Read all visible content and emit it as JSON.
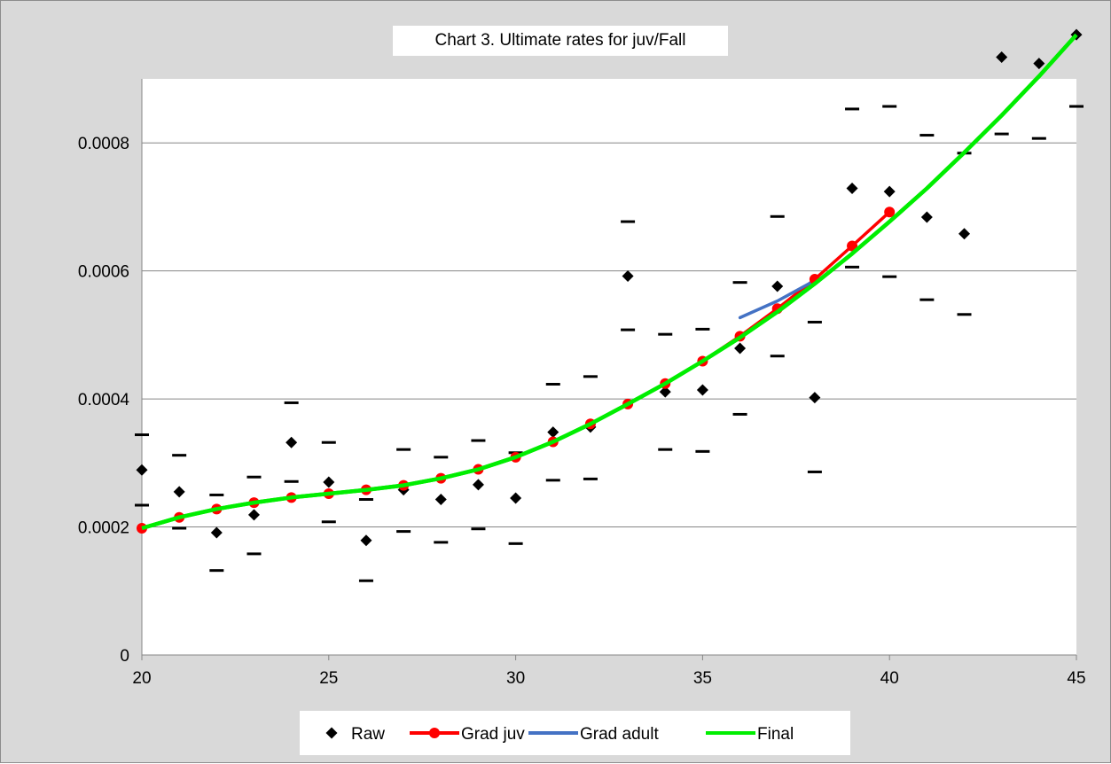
{
  "chart_data": {
    "type": "scatter",
    "title": "Chart 3. Ultimate rates for juv/Fall",
    "xlabel": "",
    "ylabel": "",
    "xlim": [
      20,
      45
    ],
    "ylim": [
      0,
      0.0009
    ],
    "x_ticks": [
      20,
      25,
      30,
      35,
      40,
      45
    ],
    "x_tick_labels": [
      "20",
      "25",
      "30",
      "35",
      "40",
      "45"
    ],
    "y_ticks": [
      0,
      0.0002,
      0.0004,
      0.0006,
      0.0008
    ],
    "y_tick_labels": [
      "0",
      "0.0002",
      "0.0004",
      "0.0006",
      "0.0008"
    ],
    "grid": "horizontal",
    "legend_position": "bottom",
    "series": [
      {
        "name": "Raw",
        "kind": "markers",
        "marker": "diamond",
        "color": "#000000",
        "x": [
          20,
          21,
          22,
          23,
          24,
          25,
          26,
          27,
          28,
          29,
          30,
          31,
          32,
          33,
          34,
          35,
          36,
          37,
          38,
          39,
          40,
          41,
          42,
          43,
          44,
          45
        ],
        "y": [
          0.000289,
          0.000255,
          0.000191,
          0.000219,
          0.000332,
          0.00027,
          0.000179,
          0.000258,
          0.000243,
          0.000266,
          0.000245,
          0.000348,
          0.000356,
          0.000592,
          0.000411,
          0.000414,
          0.000479,
          0.000576,
          0.000402,
          0.000729,
          0.000724,
          0.000684,
          0.000658,
          0.000934,
          0.000924,
          0.000969
        ]
      },
      {
        "name": "Grad juv",
        "kind": "line-markers",
        "marker": "circle",
        "color": "#ff0000",
        "x": [
          20,
          21,
          22,
          23,
          24,
          25,
          26,
          27,
          28,
          29,
          30,
          31,
          32,
          33,
          34,
          35,
          36,
          37,
          38,
          39,
          40
        ],
        "y": [
          0.000198,
          0.000215,
          0.000228,
          0.000238,
          0.000246,
          0.000252,
          0.000258,
          0.000265,
          0.000276,
          0.00029,
          0.000309,
          0.000333,
          0.000361,
          0.000392,
          0.000424,
          0.000459,
          0.000498,
          0.000541,
          0.000587,
          0.000639,
          0.000692
        ]
      },
      {
        "name": "Grad adult",
        "kind": "line",
        "color": "#4472c4",
        "x": [
          36,
          37,
          38
        ],
        "y": [
          0.000527,
          0.000553,
          0.000585
        ]
      },
      {
        "name": "Final",
        "kind": "line",
        "color": "#00ee00",
        "x": [
          20,
          21,
          22,
          23,
          24,
          25,
          26,
          27,
          28,
          29,
          30,
          31,
          32,
          33,
          34,
          35,
          36,
          37,
          38,
          39,
          40,
          41,
          42,
          43,
          44,
          45
        ],
        "y": [
          0.000198,
          0.000215,
          0.000228,
          0.000238,
          0.000246,
          0.000252,
          0.000258,
          0.000265,
          0.000276,
          0.00029,
          0.000309,
          0.000333,
          0.000361,
          0.000392,
          0.000424,
          0.000459,
          0.000496,
          0.000536,
          0.00058,
          0.000627,
          0.000677,
          0.000729,
          0.000785,
          0.000843,
          0.000904,
          0.000969
        ]
      }
    ],
    "bounds": {
      "color": "#000000",
      "x": [
        20,
        21,
        22,
        23,
        24,
        25,
        26,
        27,
        28,
        29,
        30,
        31,
        32,
        33,
        34,
        35,
        36,
        37,
        38,
        39,
        40,
        41,
        42,
        43,
        44,
        45
      ],
      "upper": [
        0.000344,
        0.000312,
        0.00025,
        0.000278,
        0.000394,
        0.000332,
        0.000243,
        0.000321,
        0.000309,
        0.000335,
        0.000316,
        0.000423,
        0.000435,
        0.000677,
        0.000501,
        0.000509,
        0.000582,
        0.000685,
        0.00052,
        0.000853,
        0.000857,
        0.000812,
        0.000784,
        0.000814,
        0.000807,
        0.000857
      ],
      "lower": [
        0.000234,
        0.000198,
        0.000132,
        0.000158,
        0.000271,
        0.000208,
        0.000116,
        0.000193,
        0.000176,
        0.000197,
        0.000174,
        0.000273,
        0.000275,
        0.000508,
        0.000321,
        0.000318,
        0.000376,
        0.000467,
        0.000286,
        0.000606,
        0.000591,
        0.000555,
        0.000532,
        0,
        0,
        0
      ]
    }
  }
}
